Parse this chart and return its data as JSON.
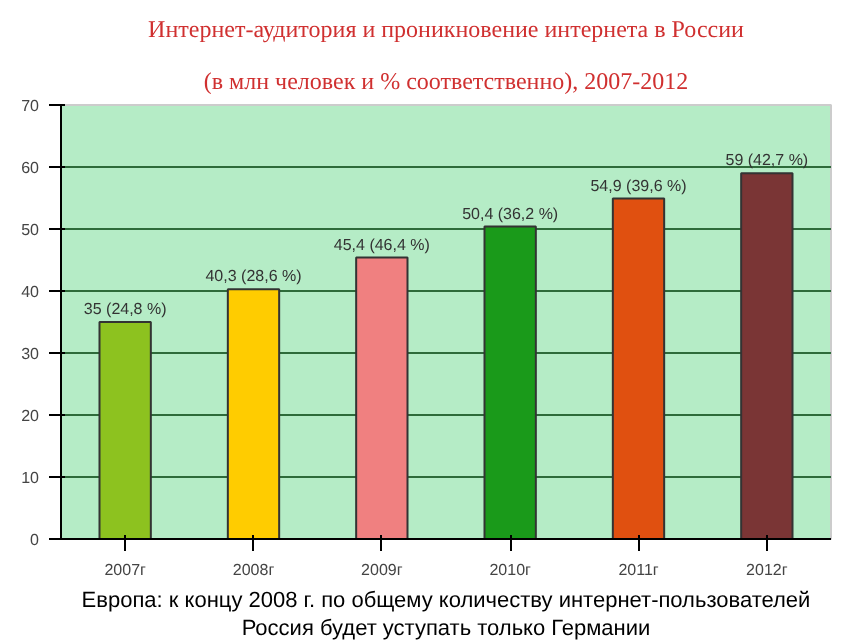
{
  "chart_data": {
    "type": "bar",
    "title": "Интернет-аудитория и проникновение интернета в России",
    "subtitle": "(в млн человек и % соответственно), 2007-2012",
    "categories": [
      "2007г",
      "2008г",
      "2009г",
      "2010г",
      "2011г",
      "2012г"
    ],
    "values": [
      35,
      40.3,
      45.4,
      50.4,
      54.9,
      59
    ],
    "colors": [
      "#8dc21f",
      "#ffcc00",
      "#f08080",
      "#1a9a1a",
      "#e05010",
      "#7a3535"
    ],
    "value_labels": [
      "35 (24,8 %)",
      "40,3 (28,6 %)",
      "45,4 (46,4 %)",
      "50,4 (36,2 %)",
      "54,9 (39,6 %)",
      "59 (42,7 %)"
    ],
    "ylim": [
      0,
      70
    ],
    "yticks": [
      0,
      10,
      20,
      30,
      40,
      50,
      60,
      70
    ],
    "grid": "y",
    "annotations": [
      "Европа: к концу 2008 г. по общему количеству интернет-пользователей",
      "Россия будет уступать только Германии"
    ]
  }
}
